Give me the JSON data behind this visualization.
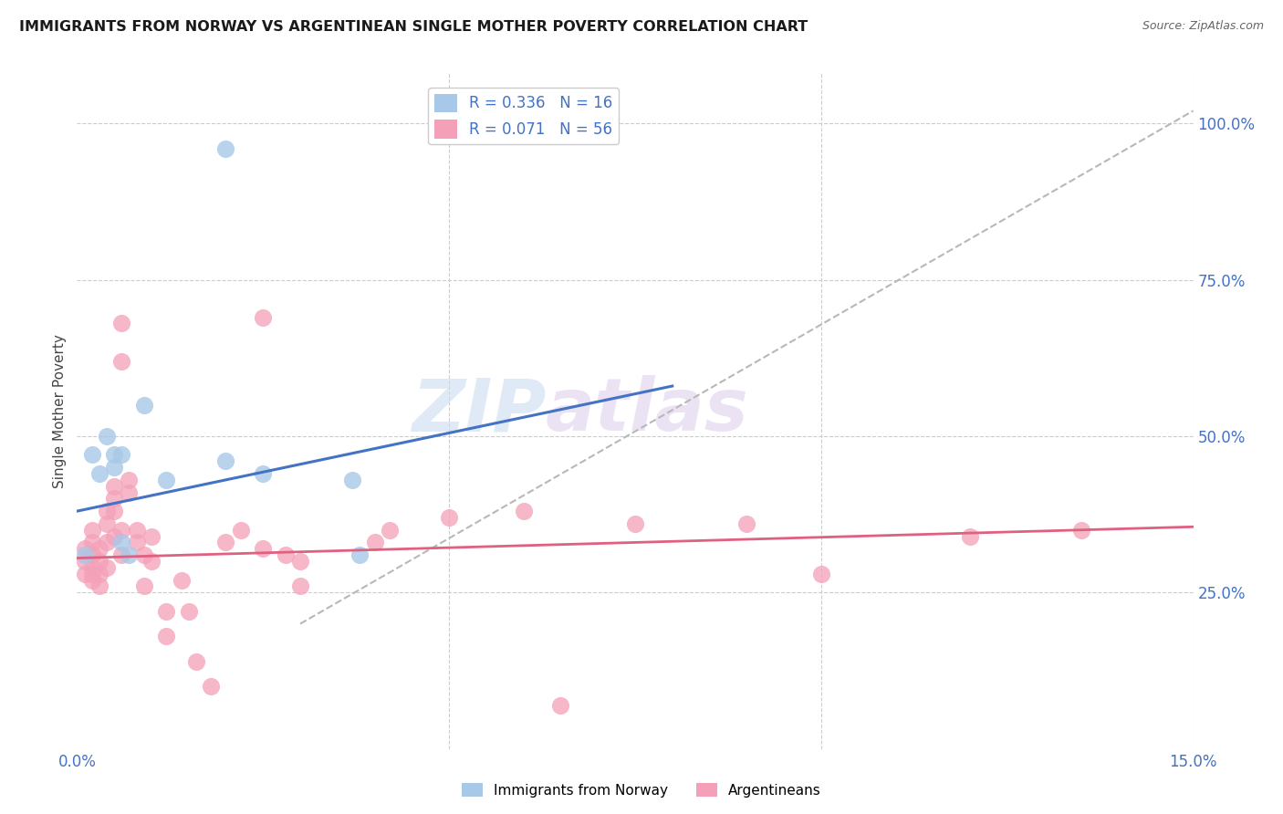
{
  "title": "IMMIGRANTS FROM NORWAY VS ARGENTINEAN SINGLE MOTHER POVERTY CORRELATION CHART",
  "source": "Source: ZipAtlas.com",
  "ylabel": "Single Mother Poverty",
  "right_yticks": [
    "100.0%",
    "75.0%",
    "50.0%",
    "25.0%"
  ],
  "right_ytick_vals": [
    1.0,
    0.75,
    0.5,
    0.25
  ],
  "legend_label1": "Immigrants from Norway",
  "legend_label2": "Argentineans",
  "R1": 0.336,
  "N1": 16,
  "R2": 0.071,
  "N2": 56,
  "color_blue": "#a8c8e8",
  "color_pink": "#f4a0b8",
  "line_blue": "#4472c4",
  "line_pink": "#e06080",
  "watermark_zip": "ZIP",
  "watermark_atlas": "atlas",
  "norway_x": [
    0.001,
    0.002,
    0.003,
    0.004,
    0.005,
    0.005,
    0.006,
    0.006,
    0.007,
    0.009,
    0.012,
    0.02,
    0.025,
    0.037,
    0.038,
    0.02
  ],
  "norway_y": [
    0.31,
    0.47,
    0.44,
    0.5,
    0.47,
    0.45,
    0.47,
    0.33,
    0.31,
    0.55,
    0.43,
    0.46,
    0.44,
    0.43,
    0.31,
    0.96
  ],
  "arg_x": [
    0.001,
    0.001,
    0.001,
    0.002,
    0.002,
    0.002,
    0.002,
    0.002,
    0.002,
    0.003,
    0.003,
    0.003,
    0.003,
    0.004,
    0.004,
    0.004,
    0.004,
    0.005,
    0.005,
    0.005,
    0.005,
    0.006,
    0.006,
    0.006,
    0.006,
    0.007,
    0.007,
    0.008,
    0.008,
    0.009,
    0.009,
    0.01,
    0.01,
    0.012,
    0.012,
    0.014,
    0.015,
    0.016,
    0.018,
    0.02,
    0.022,
    0.025,
    0.025,
    0.028,
    0.03,
    0.03,
    0.04,
    0.042,
    0.05,
    0.06,
    0.065,
    0.075,
    0.09,
    0.1,
    0.12,
    0.135
  ],
  "arg_y": [
    0.3,
    0.32,
    0.28,
    0.31,
    0.29,
    0.33,
    0.35,
    0.28,
    0.27,
    0.32,
    0.3,
    0.28,
    0.26,
    0.33,
    0.36,
    0.38,
    0.29,
    0.4,
    0.42,
    0.38,
    0.34,
    0.62,
    0.68,
    0.35,
    0.31,
    0.43,
    0.41,
    0.33,
    0.35,
    0.31,
    0.26,
    0.34,
    0.3,
    0.22,
    0.18,
    0.27,
    0.22,
    0.14,
    0.1,
    0.33,
    0.35,
    0.32,
    0.69,
    0.31,
    0.3,
    0.26,
    0.33,
    0.35,
    0.37,
    0.38,
    0.07,
    0.36,
    0.36,
    0.28,
    0.34,
    0.35
  ],
  "xlim": [
    0.0,
    0.15
  ],
  "ylim": [
    0.0,
    1.08
  ],
  "blue_line_x": [
    0.0,
    0.08
  ],
  "blue_line_y": [
    0.38,
    0.58
  ],
  "pink_line_x": [
    0.0,
    0.15
  ],
  "pink_line_y": [
    0.305,
    0.355
  ],
  "dash_line_x": [
    0.03,
    0.15
  ],
  "dash_line_y": [
    0.2,
    1.02
  ]
}
